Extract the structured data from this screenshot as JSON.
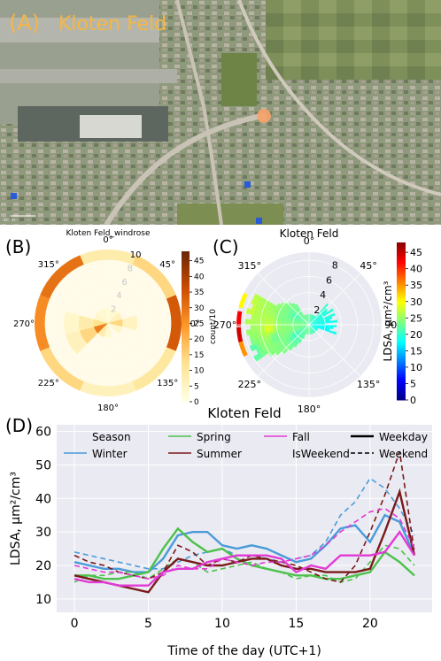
{
  "panel_a": {
    "tag": "(A)",
    "title": "Kloten Feld",
    "scale_label": "100 m",
    "colors": {
      "title": "#f5b642",
      "marker": "#f7a26a"
    }
  },
  "chart_data": [
    {
      "panel": "(B)",
      "type": "windrose",
      "title": "Kloten Feld_windrose",
      "angle_ticks": [
        "0°",
        "45°",
        "90°",
        "135°",
        "180°",
        "225°",
        "270°",
        "315°"
      ],
      "radial_ticks": [
        "2",
        "4",
        "6",
        "8",
        "10"
      ],
      "colorbar": {
        "label": "count/10",
        "ticks": [
          "0",
          "5",
          "10",
          "15",
          "20",
          "25",
          "30",
          "35",
          "40",
          "45"
        ],
        "min": 0,
        "max": 48,
        "colormap": "YlOrBr"
      },
      "direction_counts": [
        {
          "dir": 0,
          "r": 2,
          "count": 2
        },
        {
          "dir": 30,
          "r": 2,
          "count": 3
        },
        {
          "dir": 60,
          "r": 2,
          "count": 6
        },
        {
          "dir": 90,
          "r": 2,
          "count": 14
        },
        {
          "dir": 120,
          "r": 2,
          "count": 4
        },
        {
          "dir": 180,
          "r": 2,
          "count": 3
        },
        {
          "dir": 210,
          "r": 2,
          "count": 8
        },
        {
          "dir": 240,
          "r": 2,
          "count": 28
        },
        {
          "dir": 270,
          "r": 2,
          "count": 12
        },
        {
          "dir": 300,
          "r": 2,
          "count": 4
        },
        {
          "dir": 330,
          "r": 2,
          "count": 3
        },
        {
          "dir": 240,
          "r": 4,
          "count": 14
        },
        {
          "dir": 270,
          "r": 4,
          "count": 8
        },
        {
          "dir": 90,
          "r": 4,
          "count": 5
        },
        {
          "dir": 240,
          "r": 6,
          "count": 6
        },
        {
          "dir": 270,
          "r": 6,
          "count": 4
        },
        {
          "dir": 0,
          "r": 10,
          "count": 8
        },
        {
          "dir": 45,
          "r": 10,
          "count": 14
        },
        {
          "dir": 90,
          "r": 10,
          "count": 34
        },
        {
          "dir": 135,
          "r": 10,
          "count": 10
        },
        {
          "dir": 180,
          "r": 10,
          "count": 6
        },
        {
          "dir": 225,
          "r": 10,
          "count": 14
        },
        {
          "dir": 270,
          "r": 10,
          "count": 26
        },
        {
          "dir": 315,
          "r": 10,
          "count": 30
        }
      ]
    },
    {
      "panel": "(C)",
      "type": "polar-contour",
      "title": "Kloten Feld",
      "angle_ticks": [
        "0°",
        "45°",
        "90°",
        "135°",
        "180°",
        "225°",
        "270°",
        "315°"
      ],
      "radial_ticks": [
        "2",
        "4",
        "6",
        "8"
      ],
      "colorbar": {
        "label": "LDSA, µm²/cm³",
        "ticks": [
          "0",
          "5",
          "10",
          "15",
          "20",
          "25",
          "30",
          "35",
          "40",
          "45"
        ],
        "min": 0,
        "max": 48,
        "colormap": "jet"
      },
      "samples": [
        {
          "dir": 245,
          "r": 7.5,
          "ldsa": 20
        },
        {
          "dir": 255,
          "r": 7.5,
          "ldsa": 24
        },
        {
          "dir": 265,
          "r": 7.3,
          "ldsa": 25
        },
        {
          "dir": 275,
          "r": 7.3,
          "ldsa": 26
        },
        {
          "dir": 285,
          "r": 7.5,
          "ldsa": 28
        },
        {
          "dir": 265,
          "r": 5,
          "ldsa": 30
        },
        {
          "dir": 275,
          "r": 5,
          "ldsa": 26
        },
        {
          "dir": 260,
          "r": 3,
          "ldsa": 24
        },
        {
          "dir": 250,
          "r": 4.5,
          "ldsa": 22
        },
        {
          "dir": 285,
          "r": 3.5,
          "ldsa": 23
        },
        {
          "dir": 300,
          "r": 2,
          "ldsa": 21
        },
        {
          "dir": 60,
          "r": 1.2,
          "ldsa": 19
        },
        {
          "dir": 80,
          "r": 2,
          "ldsa": 18
        },
        {
          "dir": 100,
          "r": 2,
          "ldsa": 17
        },
        {
          "dir": 230,
          "r": 2,
          "ldsa": 20
        }
      ],
      "edge_values": [
        {
          "dir": 250,
          "ldsa": 35
        },
        {
          "dir": 262,
          "ldsa": 44
        },
        {
          "dir": 275,
          "ldsa": 42
        },
        {
          "dir": 290,
          "ldsa": 30
        }
      ]
    },
    {
      "panel": "(D)",
      "type": "line",
      "title": "Kloten Feld",
      "xlabel": "Time of the day (UTC+1)",
      "ylabel": "LDSA, µm²/cm³",
      "xlim": [
        -1.2,
        24.2
      ],
      "ylim": [
        6,
        62
      ],
      "xticks": [
        0,
        5,
        10,
        15,
        20
      ],
      "yticks": [
        10,
        20,
        30,
        40,
        50,
        60
      ],
      "grid": true,
      "legend": {
        "placement": "top",
        "entries": [
          "Season",
          "Winter",
          "Spring",
          "Summer",
          "Fall",
          "IsWeekend",
          "Weekday",
          "Weekend"
        ]
      },
      "x": [
        0,
        1,
        2,
        3,
        4,
        5,
        6,
        7,
        8,
        9,
        10,
        11,
        12,
        13,
        14,
        15,
        16,
        17,
        18,
        19,
        20,
        21,
        22,
        23
      ],
      "series": [
        {
          "name": "Winter",
          "daytype": "Weekday",
          "color": "#4a9bd9",
          "values": [
            21,
            20,
            19,
            19,
            18,
            18,
            22,
            29,
            30,
            30,
            26,
            25,
            26,
            25,
            23,
            21,
            22,
            26,
            31,
            32,
            27,
            35,
            33,
            23
          ]
        },
        {
          "name": "Winter",
          "daytype": "Weekend",
          "color": "#4a9bd9",
          "values": [
            24,
            23,
            22,
            21,
            20,
            19,
            19,
            21,
            23,
            24,
            25,
            23,
            23,
            22,
            21,
            22,
            23,
            27,
            35,
            39,
            46,
            43,
            37,
            29
          ]
        },
        {
          "name": "Spring",
          "daytype": "Weekday",
          "color": "#4cc14c",
          "values": [
            17,
            17,
            16,
            16,
            17,
            18,
            25,
            31,
            27,
            24,
            25,
            22,
            20,
            19,
            18,
            17,
            17,
            16,
            16,
            17,
            18,
            24,
            21,
            17
          ]
        },
        {
          "name": "Spring",
          "daytype": "Weekend",
          "color": "#4cc14c",
          "values": [
            15,
            17,
            17,
            18,
            18,
            16,
            19,
            22,
            21,
            18,
            19,
            20,
            21,
            19,
            18,
            16,
            17,
            17,
            15,
            16,
            21,
            26,
            25,
            20
          ]
        },
        {
          "name": "Summer",
          "daytype": "Weekday",
          "color": "#7a1a1a",
          "values": [
            17,
            16,
            15,
            14,
            13,
            12,
            18,
            22,
            21,
            20,
            20,
            21,
            22,
            22,
            20,
            19,
            19,
            18,
            18,
            18,
            19,
            30,
            42,
            23
          ]
        },
        {
          "name": "Summer",
          "daytype": "Weekend",
          "color": "#7a1a1a",
          "values": [
            23,
            21,
            20,
            18,
            17,
            16,
            18,
            26,
            24,
            20,
            22,
            21,
            23,
            22,
            21,
            20,
            18,
            16,
            15,
            20,
            30,
            41,
            54,
            24
          ]
        },
        {
          "name": "Fall",
          "daytype": "Weekday",
          "color": "#e23ad6",
          "values": [
            16,
            15,
            15,
            14,
            14,
            14,
            18,
            19,
            19,
            21,
            22,
            23,
            23,
            23,
            22,
            18,
            20,
            19,
            23,
            23,
            23,
            24,
            30,
            23
          ]
        },
        {
          "name": "Fall",
          "daytype": "Weekend",
          "color": "#e23ad6",
          "values": [
            20,
            19,
            18,
            18,
            17,
            16,
            17,
            20,
            19,
            19,
            22,
            21,
            20,
            21,
            21,
            22,
            23,
            26,
            30,
            33,
            36,
            37,
            34,
            25
          ]
        }
      ]
    }
  ]
}
